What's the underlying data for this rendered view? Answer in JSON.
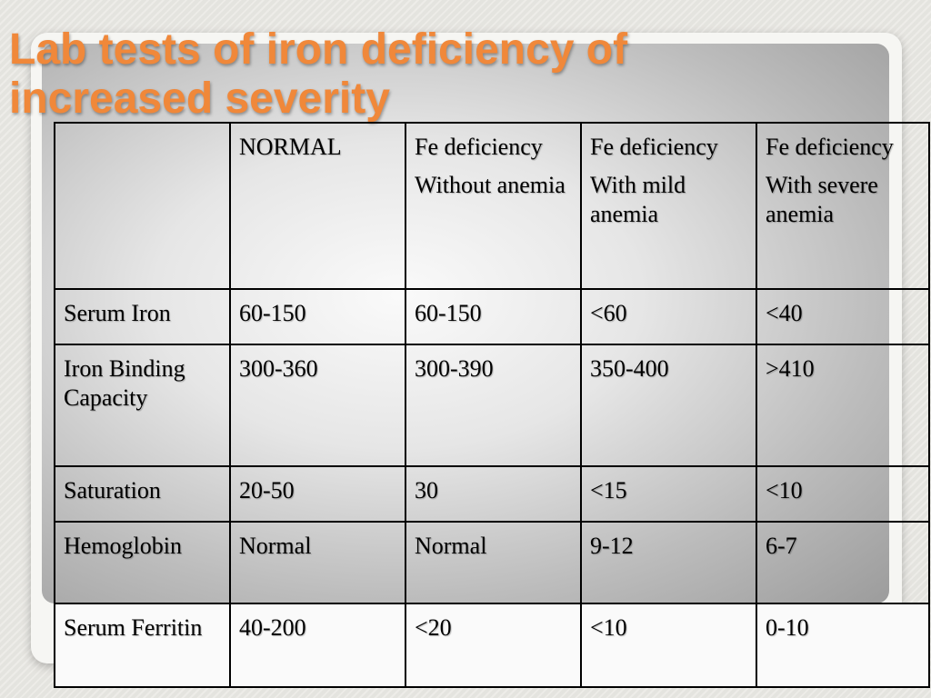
{
  "slide": {
    "title_line1": "Lab tests of iron deficiency of",
    "title_line2": "increased severity"
  },
  "table": {
    "headers": [
      {
        "line1": "",
        "line2": ""
      },
      {
        "line1": "NORMAL",
        "line2": ""
      },
      {
        "line1": "Fe deficiency",
        "line2": "Without anemia"
      },
      {
        "line1": "Fe deficiency",
        "line2": "With mild anemia"
      },
      {
        "line1": "Fe deficiency",
        "line2": "With severe anemia"
      }
    ],
    "rows": [
      {
        "label": "Serum  Iron",
        "values": [
          "60-150",
          "60-150",
          "<60",
          "<40"
        ]
      },
      {
        "label": "Iron Binding Capacity",
        "values": [
          "300-360",
          "300-390",
          "350-400",
          ">410"
        ]
      },
      {
        "label": "Saturation",
        "values": [
          "20-50",
          "30",
          "<15",
          "<10"
        ]
      },
      {
        "label": "Hemoglobin",
        "values": [
          "Normal",
          "Normal",
          "9-12",
          "6-7"
        ]
      },
      {
        "label": "Serum Ferritin",
        "values": [
          "40-200",
          "<20",
          "<10",
          "0-10"
        ]
      }
    ]
  },
  "colors": {
    "title": "#f0883a"
  }
}
